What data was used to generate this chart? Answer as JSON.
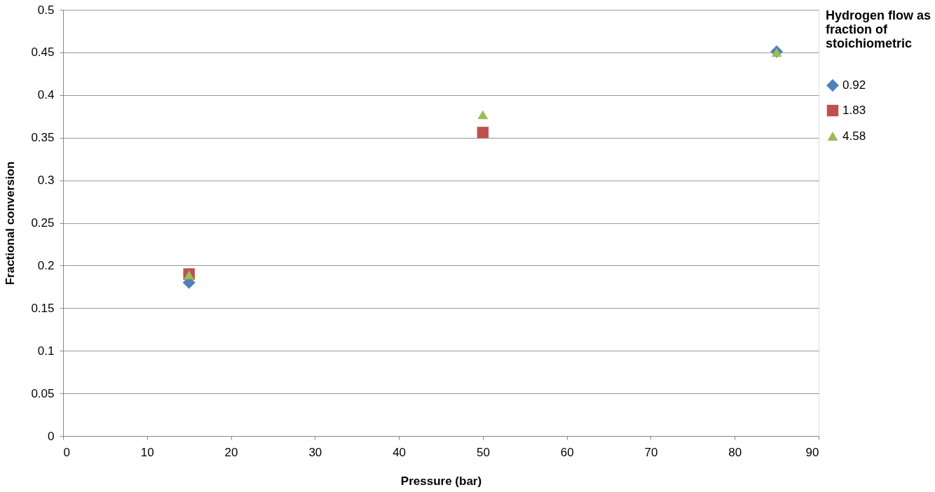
{
  "chart_data": {
    "type": "scatter",
    "xlabel": "Pressure (bar)",
    "ylabel": "Fractional conversion",
    "legend_title": "Hydrogen flow as fraction of stoichiometric",
    "x": [
      15,
      50,
      85
    ],
    "series": [
      {
        "name": "0.92",
        "color": "#4f81bd",
        "marker": "diamond",
        "values": [
          0.18,
          null,
          0.451
        ]
      },
      {
        "name": "1.83",
        "color": "#c0504d",
        "marker": "square",
        "values": [
          0.19,
          0.356,
          null
        ]
      },
      {
        "name": "4.58",
        "color": "#9bbb59",
        "marker": "triangle",
        "values": [
          0.189,
          0.377,
          0.45
        ]
      }
    ],
    "xlim": [
      0,
      90
    ],
    "xticks": [
      0,
      10,
      20,
      30,
      40,
      50,
      60,
      70,
      80,
      90
    ],
    "ylim": [
      0,
      0.5
    ],
    "yticks": [
      0,
      0.05,
      0.1,
      0.15,
      0.2,
      0.25,
      0.3,
      0.35,
      0.4,
      0.45,
      0.5
    ],
    "grid": "y",
    "legend": "right"
  }
}
